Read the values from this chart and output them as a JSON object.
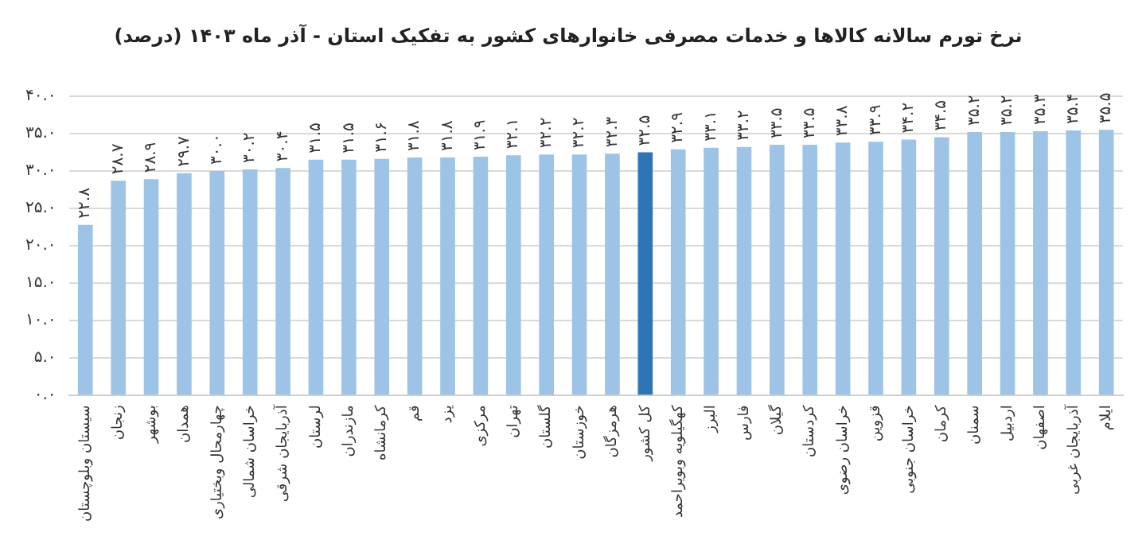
{
  "chart_data": {
    "type": "bar",
    "title": "نرخ تورم سالانه کالاها و خدمات مصرفی خانوارهای کشور به تفکیک استان - آذر ماه ۱۴۰۳ (درصد)",
    "categories": [
      "سیستان وبلوچستان",
      "زنجان",
      "بوشهر",
      "همدان",
      "چهارمحال وبختیاری",
      "خراسان شمالی",
      "آذربایجان شرقی",
      "لرستان",
      "مازندران",
      "کرمانشاه",
      "قم",
      "یزد",
      "مرکزی",
      "تهران",
      "گلستان",
      "خوزستان",
      "هرمزگان",
      "کل کشور",
      "کهگیلویه وبویراحمد",
      "البرز",
      "فارس",
      "گیلان",
      "کردستان",
      "خراسان رضوی",
      "قزوین",
      "خراسان جنوبی",
      "کرمان",
      "سمنان",
      "اردبیل",
      "اصفهان",
      "آذربایجان غربی",
      "ایلام"
    ],
    "values": [
      22.8,
      28.7,
      28.9,
      29.7,
      30.0,
      30.2,
      30.4,
      31.5,
      31.5,
      31.6,
      31.8,
      31.8,
      31.9,
      32.1,
      32.2,
      32.2,
      32.3,
      32.5,
      32.9,
      33.1,
      33.2,
      33.5,
      33.5,
      33.8,
      33.9,
      34.2,
      34.5,
      35.2,
      35.2,
      35.3,
      35.4,
      35.5
    ],
    "value_labels": [
      "۲۲.۸",
      "۲۸.۷",
      "۲۸.۹",
      "۲۹.۷",
      "۳۰.۰",
      "۳۰.۲",
      "۳۰.۴",
      "۳۱.۵",
      "۳۱.۵",
      "۳۱.۶",
      "۳۱.۸",
      "۳۱.۸",
      "۳۱.۹",
      "۳۲.۱",
      "۳۲.۲",
      "۳۲.۲",
      "۳۲.۳",
      "۳۲.۵",
      "۳۲.۹",
      "۳۳.۱",
      "۳۳.۲",
      "۳۳.۵",
      "۳۳.۵",
      "۳۳.۸",
      "۳۳.۹",
      "۳۴.۲",
      "۳۴.۵",
      "۳۵.۲",
      "۳۵.۲",
      "۳۵.۳",
      "۳۵.۴",
      "۳۵.۵"
    ],
    "colors": [
      "#9dc3e6",
      "#9dc3e6",
      "#9dc3e6",
      "#9dc3e6",
      "#9dc3e6",
      "#9dc3e6",
      "#9dc3e6",
      "#9dc3e6",
      "#9dc3e6",
      "#9dc3e6",
      "#9dc3e6",
      "#9dc3e6",
      "#9dc3e6",
      "#9dc3e6",
      "#9dc3e6",
      "#9dc3e6",
      "#9dc3e6",
      "#2e75b6",
      "#9dc3e6",
      "#9dc3e6",
      "#9dc3e6",
      "#9dc3e6",
      "#9dc3e6",
      "#9dc3e6",
      "#9dc3e6",
      "#9dc3e6",
      "#9dc3e6",
      "#9dc3e6",
      "#9dc3e6",
      "#9dc3e6",
      "#9dc3e6",
      "#9dc3e6"
    ],
    "ylim": [
      0,
      40
    ],
    "yticks": [
      {
        "value": 0,
        "label": "۰.۰"
      },
      {
        "value": 5,
        "label": "۵.۰"
      },
      {
        "value": 10,
        "label": "۱۰.۰"
      },
      {
        "value": 15,
        "label": "۱۵.۰"
      },
      {
        "value": 20,
        "label": "۲۰.۰"
      },
      {
        "value": 25,
        "label": "۲۵.۰"
      },
      {
        "value": 30,
        "label": "۳۰.۰"
      },
      {
        "value": 35,
        "label": "۳۵.۰"
      },
      {
        "value": 40,
        "label": "۴۰.۰"
      }
    ],
    "grid": "y",
    "legend": false
  }
}
